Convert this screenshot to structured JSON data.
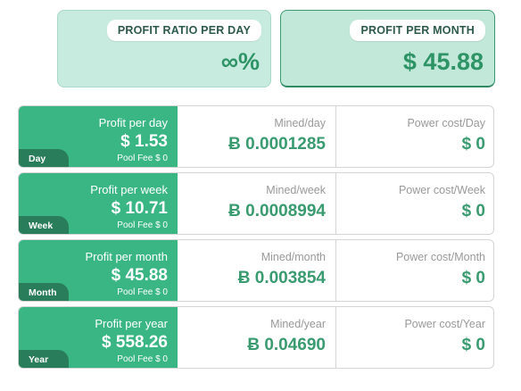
{
  "summary": {
    "ratio": {
      "label": "PROFIT RATIO PER DAY",
      "value": "∞%"
    },
    "month": {
      "label": "PROFIT PER MONTH",
      "value": "$ 45.88"
    }
  },
  "rows": [
    {
      "tag": "Day",
      "profit_label": "Profit per day",
      "profit_value": "$ 1.53",
      "pool_fee": "Pool Fee $ 0",
      "mined_label": "Mined/day",
      "mined_value": "Ƀ 0.0001285",
      "power_label": "Power cost/Day",
      "power_value": "$ 0"
    },
    {
      "tag": "Week",
      "profit_label": "Profit per week",
      "profit_value": "$ 10.71",
      "pool_fee": "Pool Fee $ 0",
      "mined_label": "Mined/week",
      "mined_value": "Ƀ 0.0008994",
      "power_label": "Power cost/Week",
      "power_value": "$ 0"
    },
    {
      "tag": "Month",
      "profit_label": "Profit per month",
      "profit_value": "$ 45.88",
      "pool_fee": "Pool Fee $ 0",
      "mined_label": "Mined/month",
      "mined_value": "Ƀ 0.003854",
      "power_label": "Power cost/Month",
      "power_value": "$ 0"
    },
    {
      "tag": "Year",
      "profit_label": "Profit per year",
      "profit_value": "$ 558.26",
      "pool_fee": "Pool Fee $ 0",
      "mined_label": "Mined/year",
      "mined_value": "Ƀ 0.04690",
      "power_label": "Power cost/Year",
      "power_value": "$ 0"
    }
  ],
  "colors": {
    "accent_green": "#3ab685",
    "dark_green_tag": "#2a7d5a",
    "value_green": "#3a9a70",
    "summary_bg": "#c8ebe0"
  }
}
